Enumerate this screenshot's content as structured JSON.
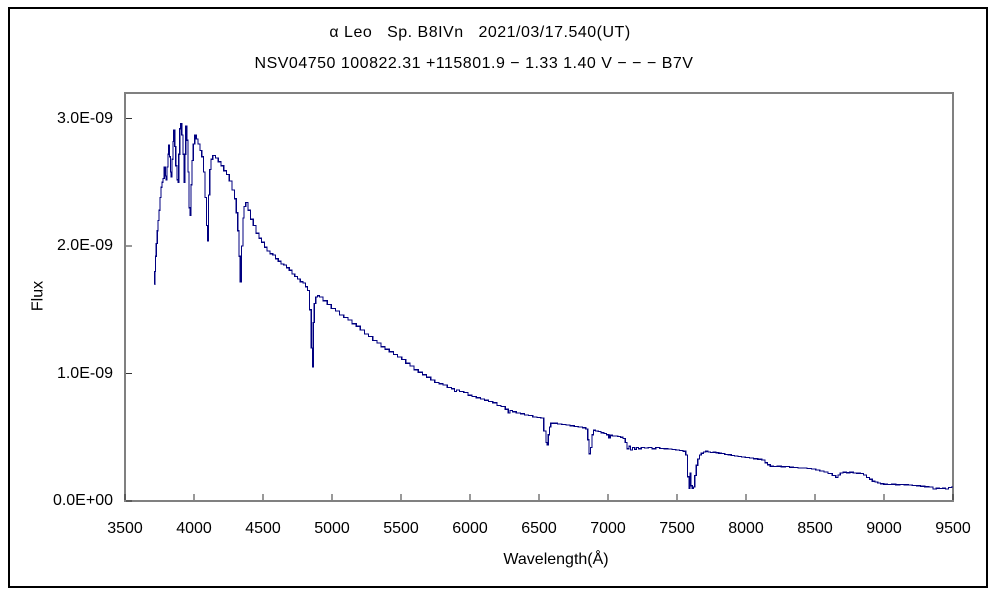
{
  "figure": {
    "background_color": "#ffffff",
    "border_color": "#000000"
  },
  "chart_data": {
    "type": "line",
    "title": "α Leo   Sp. B8IVn   2021/03/17.540(UT)",
    "subtitle": "NSV04750 100822.31 +115801.9 − 1.33 1.40 V − − − B7V",
    "xlabel": "Wavelength(Å)",
    "ylabel": "Flux",
    "xlim": [
      3500,
      9500
    ],
    "ylim": [
      0,
      3.2e-09
    ],
    "grid": false,
    "legend": false,
    "line_color": "#000080",
    "frame_color": "#808080",
    "tick_color": "#333333",
    "x_ticks": [
      3500,
      4000,
      4500,
      5000,
      5500,
      6000,
      6500,
      7000,
      7500,
      8000,
      8500,
      9000,
      9500
    ],
    "y_ticks": [
      {
        "value_1e9": 0.0,
        "label": "0.0E+00"
      },
      {
        "value_1e9": 1.0,
        "label": "1.0E-09"
      },
      {
        "value_1e9": 2.0,
        "label": "2.0E-09"
      },
      {
        "value_1e9": 3.0,
        "label": "3.0E-09"
      }
    ],
    "flux_unit_scale": "values given in 1e-9",
    "series": [
      {
        "name": "alpha Leo spectrum",
        "points": [
          [
            3712,
            1.7
          ],
          [
            3718,
            1.8
          ],
          [
            3724,
            1.92
          ],
          [
            3730,
            2.02
          ],
          [
            3736,
            2.12
          ],
          [
            3742,
            2.2
          ],
          [
            3750,
            2.28
          ],
          [
            3758,
            2.38
          ],
          [
            3764,
            2.46
          ],
          [
            3772,
            2.5
          ],
          [
            3780,
            2.53
          ],
          [
            3788,
            2.62
          ],
          [
            3794,
            2.55
          ],
          [
            3800,
            2.52
          ],
          [
            3808,
            2.62
          ],
          [
            3814,
            2.72
          ],
          [
            3820,
            2.79
          ],
          [
            3827,
            2.7
          ],
          [
            3833,
            2.58
          ],
          [
            3838,
            2.54
          ],
          [
            3844,
            2.68
          ],
          [
            3850,
            2.82
          ],
          [
            3856,
            2.91
          ],
          [
            3864,
            2.78
          ],
          [
            3872,
            2.63
          ],
          [
            3880,
            2.52
          ],
          [
            3886,
            2.5
          ],
          [
            3893,
            2.72
          ],
          [
            3900,
            2.92
          ],
          [
            3907,
            2.96
          ],
          [
            3916,
            2.87
          ],
          [
            3924,
            2.72
          ],
          [
            3930,
            2.5
          ],
          [
            3937,
            2.72
          ],
          [
            3944,
            2.94
          ],
          [
            3952,
            2.83
          ],
          [
            3960,
            2.58
          ],
          [
            3968,
            2.3
          ],
          [
            3974,
            2.24
          ],
          [
            3982,
            2.48
          ],
          [
            3990,
            2.67
          ],
          [
            4000,
            2.8
          ],
          [
            4010,
            2.87
          ],
          [
            4022,
            2.84
          ],
          [
            4036,
            2.8
          ],
          [
            4050,
            2.75
          ],
          [
            4062,
            2.7
          ],
          [
            4074,
            2.58
          ],
          [
            4086,
            2.38
          ],
          [
            4094,
            2.16
          ],
          [
            4102,
            2.04
          ],
          [
            4110,
            2.4
          ],
          [
            4118,
            2.6
          ],
          [
            4128,
            2.68
          ],
          [
            4145,
            2.71
          ],
          [
            4165,
            2.69
          ],
          [
            4185,
            2.66
          ],
          [
            4205,
            2.63
          ],
          [
            4225,
            2.59
          ],
          [
            4245,
            2.56
          ],
          [
            4265,
            2.51
          ],
          [
            4285,
            2.44
          ],
          [
            4300,
            2.37
          ],
          [
            4312,
            2.26
          ],
          [
            4322,
            2.12
          ],
          [
            4330,
            1.92
          ],
          [
            4340,
            1.72
          ],
          [
            4350,
            2.0
          ],
          [
            4358,
            2.22
          ],
          [
            4368,
            2.31
          ],
          [
            4382,
            2.34
          ],
          [
            4400,
            2.28
          ],
          [
            4420,
            2.21
          ],
          [
            4440,
            2.16
          ],
          [
            4460,
            2.1
          ],
          [
            4480,
            2.06
          ],
          [
            4500,
            2.03
          ],
          [
            4520,
            1.99
          ],
          [
            4540,
            1.96
          ],
          [
            4560,
            1.94
          ],
          [
            4580,
            1.93
          ],
          [
            4600,
            1.9
          ],
          [
            4620,
            1.88
          ],
          [
            4640,
            1.86
          ],
          [
            4660,
            1.85
          ],
          [
            4680,
            1.83
          ],
          [
            4700,
            1.81
          ],
          [
            4720,
            1.78
          ],
          [
            4740,
            1.76
          ],
          [
            4760,
            1.74
          ],
          [
            4780,
            1.72
          ],
          [
            4800,
            1.71
          ],
          [
            4815,
            1.68
          ],
          [
            4830,
            1.65
          ],
          [
            4845,
            1.5
          ],
          [
            4855,
            1.2
          ],
          [
            4861,
            1.05
          ],
          [
            4868,
            1.4
          ],
          [
            4876,
            1.55
          ],
          [
            4888,
            1.6
          ],
          [
            4900,
            1.61
          ],
          [
            4920,
            1.6
          ],
          [
            4950,
            1.57
          ],
          [
            4980,
            1.54
          ],
          [
            5010,
            1.51
          ],
          [
            5040,
            1.49
          ],
          [
            5070,
            1.46
          ],
          [
            5100,
            1.44
          ],
          [
            5130,
            1.42
          ],
          [
            5160,
            1.39
          ],
          [
            5190,
            1.37
          ],
          [
            5220,
            1.34
          ],
          [
            5250,
            1.31
          ],
          [
            5280,
            1.29
          ],
          [
            5310,
            1.26
          ],
          [
            5340,
            1.24
          ],
          [
            5370,
            1.21
          ],
          [
            5400,
            1.19
          ],
          [
            5430,
            1.17
          ],
          [
            5460,
            1.15
          ],
          [
            5490,
            1.13
          ],
          [
            5520,
            1.11
          ],
          [
            5550,
            1.08
          ],
          [
            5580,
            1.06
          ],
          [
            5610,
            1.03
          ],
          [
            5640,
            1.01
          ],
          [
            5670,
            0.99
          ],
          [
            5700,
            0.97
          ],
          [
            5730,
            0.95
          ],
          [
            5760,
            0.93
          ],
          [
            5790,
            0.92
          ],
          [
            5820,
            0.91
          ],
          [
            5850,
            0.89
          ],
          [
            5880,
            0.88
          ],
          [
            5895,
            0.86
          ],
          [
            5910,
            0.87
          ],
          [
            5940,
            0.86
          ],
          [
            5970,
            0.85
          ],
          [
            6000,
            0.83
          ],
          [
            6030,
            0.82
          ],
          [
            6060,
            0.81
          ],
          [
            6090,
            0.8
          ],
          [
            6120,
            0.79
          ],
          [
            6150,
            0.78
          ],
          [
            6180,
            0.77
          ],
          [
            6210,
            0.75
          ],
          [
            6240,
            0.74
          ],
          [
            6270,
            0.72
          ],
          [
            6283,
            0.69
          ],
          [
            6295,
            0.71
          ],
          [
            6320,
            0.7
          ],
          [
            6350,
            0.69
          ],
          [
            6380,
            0.685
          ],
          [
            6410,
            0.675
          ],
          [
            6440,
            0.67
          ],
          [
            6470,
            0.66
          ],
          [
            6500,
            0.655
          ],
          [
            6525,
            0.65
          ],
          [
            6545,
            0.55
          ],
          [
            6555,
            0.46
          ],
          [
            6563,
            0.44
          ],
          [
            6572,
            0.52
          ],
          [
            6580,
            0.58
          ],
          [
            6590,
            0.61
          ],
          [
            6620,
            0.61
          ],
          [
            6650,
            0.605
          ],
          [
            6680,
            0.6
          ],
          [
            6710,
            0.595
          ],
          [
            6740,
            0.59
          ],
          [
            6770,
            0.585
          ],
          [
            6800,
            0.58
          ],
          [
            6830,
            0.575
          ],
          [
            6848,
            0.565
          ],
          [
            6858,
            0.48
          ],
          [
            6868,
            0.37
          ],
          [
            6878,
            0.42
          ],
          [
            6888,
            0.52
          ],
          [
            6900,
            0.555
          ],
          [
            6920,
            0.55
          ],
          [
            6940,
            0.545
          ],
          [
            6960,
            0.535
          ],
          [
            6980,
            0.53
          ],
          [
            7000,
            0.52
          ],
          [
            7010,
            0.495
          ],
          [
            7022,
            0.515
          ],
          [
            7040,
            0.51
          ],
          [
            7060,
            0.51
          ],
          [
            7080,
            0.505
          ],
          [
            7100,
            0.5
          ],
          [
            7118,
            0.49
          ],
          [
            7132,
            0.46
          ],
          [
            7145,
            0.41
          ],
          [
            7158,
            0.43
          ],
          [
            7170,
            0.4
          ],
          [
            7184,
            0.42
          ],
          [
            7198,
            0.405
          ],
          [
            7212,
            0.42
          ],
          [
            7230,
            0.41
          ],
          [
            7252,
            0.42
          ],
          [
            7278,
            0.415
          ],
          [
            7305,
            0.42
          ],
          [
            7332,
            0.41
          ],
          [
            7360,
            0.42
          ],
          [
            7390,
            0.412
          ],
          [
            7420,
            0.41
          ],
          [
            7450,
            0.408
          ],
          [
            7478,
            0.403
          ],
          [
            7505,
            0.4
          ],
          [
            7532,
            0.395
          ],
          [
            7556,
            0.39
          ],
          [
            7572,
            0.36
          ],
          [
            7582,
            0.19
          ],
          [
            7590,
            0.1
          ],
          [
            7598,
            0.22
          ],
          [
            7606,
            0.12
          ],
          [
            7614,
            0.1
          ],
          [
            7624,
            0.11
          ],
          [
            7634,
            0.2
          ],
          [
            7645,
            0.28
          ],
          [
            7656,
            0.33
          ],
          [
            7668,
            0.36
          ],
          [
            7684,
            0.375
          ],
          [
            7700,
            0.385
          ],
          [
            7716,
            0.39
          ],
          [
            7734,
            0.385
          ],
          [
            7752,
            0.38
          ],
          [
            7772,
            0.382
          ],
          [
            7792,
            0.378
          ],
          [
            7812,
            0.375
          ],
          [
            7835,
            0.372
          ],
          [
            7858,
            0.365
          ],
          [
            7880,
            0.362
          ],
          [
            7905,
            0.358
          ],
          [
            7930,
            0.352
          ],
          [
            7955,
            0.35
          ],
          [
            7980,
            0.345
          ],
          [
            8010,
            0.34
          ],
          [
            8040,
            0.338
          ],
          [
            8070,
            0.332
          ],
          [
            8100,
            0.328
          ],
          [
            8128,
            0.322
          ],
          [
            8148,
            0.3
          ],
          [
            8165,
            0.285
          ],
          [
            8185,
            0.272
          ],
          [
            8210,
            0.27
          ],
          [
            8240,
            0.272
          ],
          [
            8270,
            0.268
          ],
          [
            8300,
            0.27
          ],
          [
            8330,
            0.265
          ],
          [
            8360,
            0.262
          ],
          [
            8392,
            0.26
          ],
          [
            8425,
            0.258
          ],
          [
            8458,
            0.255
          ],
          [
            8490,
            0.25
          ],
          [
            8520,
            0.242
          ],
          [
            8550,
            0.235
          ],
          [
            8580,
            0.228
          ],
          [
            8610,
            0.215
          ],
          [
            8640,
            0.2
          ],
          [
            8660,
            0.185
          ],
          [
            8675,
            0.205
          ],
          [
            8692,
            0.22
          ],
          [
            8715,
            0.225
          ],
          [
            8740,
            0.222
          ],
          [
            8765,
            0.225
          ],
          [
            8790,
            0.22
          ],
          [
            8815,
            0.218
          ],
          [
            8840,
            0.215
          ],
          [
            8862,
            0.205
          ],
          [
            8885,
            0.185
          ],
          [
            8905,
            0.17
          ],
          [
            8925,
            0.155
          ],
          [
            8945,
            0.148
          ],
          [
            8965,
            0.14
          ],
          [
            8985,
            0.135
          ],
          [
            9010,
            0.132
          ],
          [
            9040,
            0.13
          ],
          [
            9070,
            0.132
          ],
          [
            9100,
            0.128
          ],
          [
            9130,
            0.13
          ],
          [
            9160,
            0.128
          ],
          [
            9190,
            0.125
          ],
          [
            9220,
            0.122
          ],
          [
            9250,
            0.12
          ],
          [
            9280,
            0.115
          ],
          [
            9310,
            0.112
          ],
          [
            9340,
            0.11
          ],
          [
            9368,
            0.095
          ],
          [
            9390,
            0.1
          ],
          [
            9412,
            0.098
          ],
          [
            9435,
            0.1
          ],
          [
            9458,
            0.095
          ],
          [
            9478,
            0.105
          ],
          [
            9500,
            0.11
          ]
        ]
      }
    ]
  }
}
